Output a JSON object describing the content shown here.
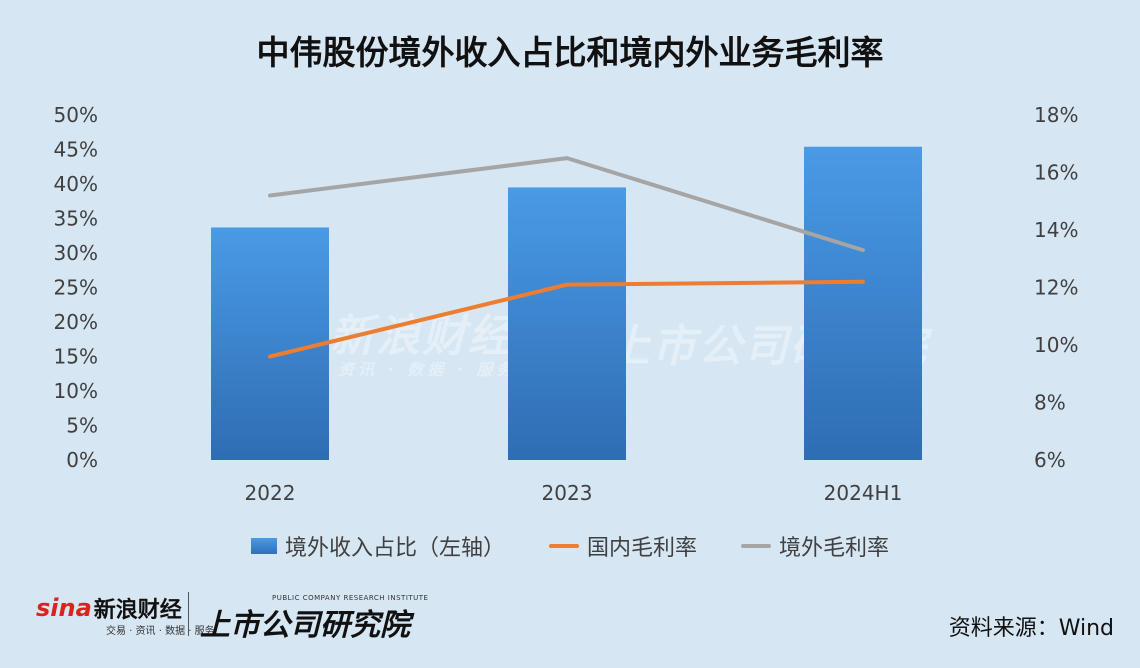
{
  "title": "中伟股份境外收入占比和境内外业务毛利率",
  "watermark": {
    "text": "新浪财经",
    "sub": "资讯 · 数据 · 服务",
    "text2": "上市公司研究院"
  },
  "footer": {
    "logo_mark": "sina",
    "logo_name": "新浪财经",
    "logo_sub": "交易 · 资讯 · 数据 · 服务",
    "institute_en": "PUBLIC COMPANY RESEARCH INSTITUTE",
    "institute_cn": "上市公司研究院",
    "source": "资料来源：Wind"
  },
  "chart_data": {
    "type": "bar",
    "categories": [
      "2022",
      "2023",
      "2024H1"
    ],
    "y_left": {
      "ticks": [
        "0%",
        "5%",
        "10%",
        "15%",
        "20%",
        "25%",
        "30%",
        "35%",
        "40%",
        "45%",
        "50%"
      ],
      "ylim": [
        0,
        50
      ]
    },
    "y_right": {
      "ticks": [
        "6%",
        "8%",
        "10%",
        "12%",
        "14%",
        "16%",
        "18%"
      ],
      "ylim": [
        6,
        18
      ]
    },
    "series": [
      {
        "name": "境外收入占比（左轴）",
        "type": "bar",
        "axis": "left",
        "values": [
          33.7,
          39.5,
          45.4
        ],
        "color": "#3a86d6"
      },
      {
        "name": "国内毛利率",
        "type": "line",
        "axis": "right",
        "values": [
          9.6,
          12.1,
          12.2
        ],
        "color": "#ed7d31"
      },
      {
        "name": "境外毛利率",
        "type": "line",
        "axis": "right",
        "values": [
          15.2,
          16.5,
          13.3
        ],
        "color": "#a5a5a5"
      }
    ],
    "grid": false,
    "legend": "bottom"
  }
}
